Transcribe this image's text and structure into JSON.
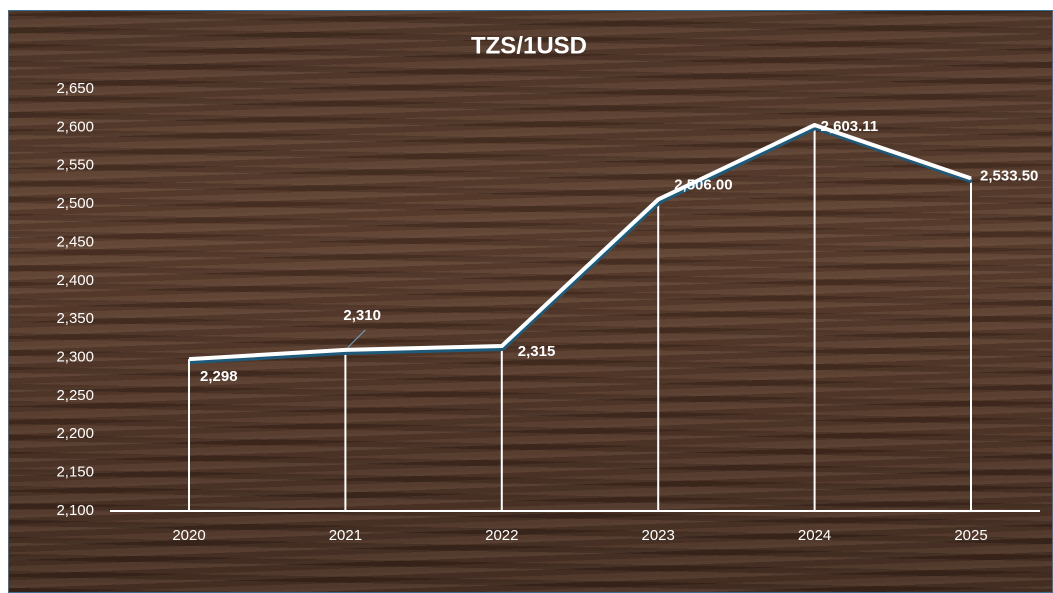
{
  "chart_data": {
    "type": "line",
    "title": "TZS/1USD",
    "categories": [
      "2020",
      "2021",
      "2022",
      "2023",
      "2024",
      "2025"
    ],
    "values": [
      2298,
      2310,
      2315,
      2506,
      2603.11,
      2533.5
    ],
    "value_labels": [
      "2,298",
      "2,310",
      "2,315",
      "2,506.00",
      "2,603.11",
      "2,533.50"
    ],
    "color": "#ffffff",
    "shadow_color": "#1f5a7a",
    "ylim": [
      2100,
      2650
    ],
    "yticks": [
      {
        "value": 2100,
        "label": "2,100"
      },
      {
        "value": 2150,
        "label": "2,150"
      },
      {
        "value": 2200,
        "label": "2,200"
      },
      {
        "value": 2250,
        "label": "2,250"
      },
      {
        "value": 2300,
        "label": "2,300"
      },
      {
        "value": 2350,
        "label": "2,350"
      },
      {
        "value": 2400,
        "label": "2,400"
      },
      {
        "value": 2450,
        "label": "2,450"
      },
      {
        "value": 2500,
        "label": "2,500"
      },
      {
        "value": 2550,
        "label": "2,550"
      },
      {
        "value": 2600,
        "label": "2,600"
      },
      {
        "value": 2650,
        "label": "2,650"
      }
    ],
    "drop_lines": true
  }
}
